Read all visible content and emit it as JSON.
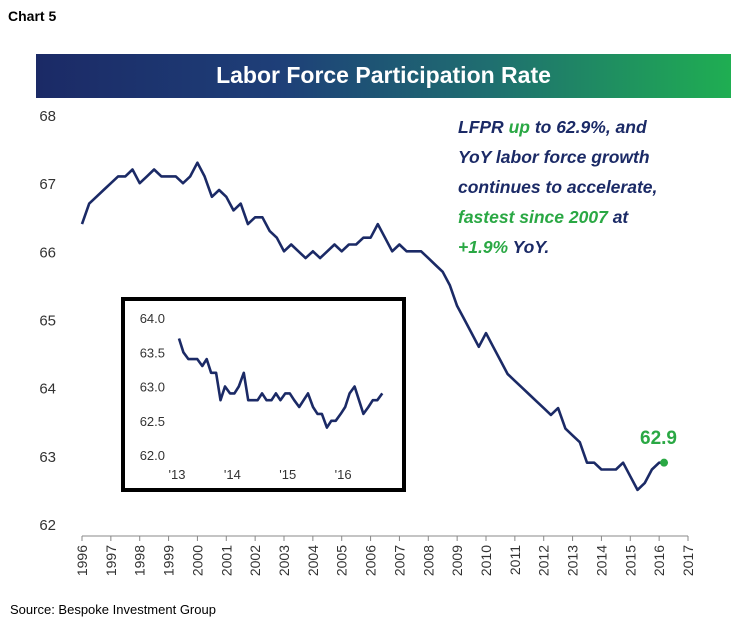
{
  "header": {
    "chart_label": "Chart 5",
    "title": "Labor Force Participation Rate"
  },
  "annotation": {
    "l1a": "LFPR ",
    "l1b": "up",
    "l1c": " to 62.9%, and",
    "l2": "YoY labor force growth",
    "l3": "continues to accelerate,",
    "l4a": "fastest since 2007",
    "l4b": " at",
    "l5a": "+1.9%",
    "l5b": " YoY."
  },
  "source": "Source: Bespoke Investment Group",
  "colors": {
    "line": "#1b2a66",
    "accent": "#2aa844"
  },
  "chart_data": [
    {
      "type": "line",
      "title": "Labor Force Participation Rate",
      "xlabel": "",
      "ylabel": "",
      "xlim": [
        1996,
        2017
      ],
      "ylim": [
        62,
        68
      ],
      "yticks": [
        "68",
        "67",
        "66",
        "65",
        "64",
        "63",
        "62"
      ],
      "xticks": [
        "1996",
        "1997",
        "1998",
        "1999",
        "2000",
        "2001",
        "2002",
        "2003",
        "2004",
        "2005",
        "2006",
        "2007",
        "2008",
        "2009",
        "2010",
        "2011",
        "2012",
        "2013",
        "2014",
        "2015",
        "2016",
        "2017"
      ],
      "last_value_label": "62.9",
      "series": [
        {
          "x": [
            1996.0,
            1996.25,
            1996.5,
            1996.75,
            1997.0,
            1997.25,
            1997.5,
            1997.75,
            1998.0,
            1998.25,
            1998.5,
            1998.75,
            1999.0,
            1999.25,
            1999.5,
            1999.75,
            2000.0,
            2000.25,
            2000.5,
            2000.75,
            2001.0,
            2001.25,
            2001.5,
            2001.75,
            2002.0,
            2002.25,
            2002.5,
            2002.75,
            2003.0,
            2003.25,
            2003.5,
            2003.75,
            2004.0,
            2004.25,
            2004.5,
            2004.75,
            2005.0,
            2005.25,
            2005.5,
            2005.75,
            2006.0,
            2006.25,
            2006.5,
            2006.75,
            2007.0,
            2007.25,
            2007.5,
            2007.75,
            2008.0,
            2008.25,
            2008.5,
            2008.75,
            2009.0,
            2009.25,
            2009.5,
            2009.75,
            2010.0,
            2010.25,
            2010.5,
            2010.75,
            2011.0,
            2011.25,
            2011.5,
            2011.75,
            2012.0,
            2012.25,
            2012.5,
            2012.75,
            2013.0,
            2013.25,
            2013.5,
            2013.75,
            2014.0,
            2014.25,
            2014.5,
            2014.75,
            2015.0,
            2015.25,
            2015.5,
            2015.75,
            2016.0,
            2016.17
          ],
          "values": [
            66.4,
            66.7,
            66.8,
            66.9,
            67.0,
            67.1,
            67.1,
            67.2,
            67.0,
            67.1,
            67.2,
            67.1,
            67.1,
            67.1,
            67.0,
            67.1,
            67.3,
            67.1,
            66.8,
            66.9,
            66.8,
            66.6,
            66.7,
            66.4,
            66.5,
            66.5,
            66.3,
            66.2,
            66.0,
            66.1,
            66.0,
            65.9,
            66.0,
            65.9,
            66.0,
            66.1,
            66.0,
            66.1,
            66.1,
            66.2,
            66.2,
            66.4,
            66.2,
            66.0,
            66.1,
            66.0,
            66.0,
            66.0,
            65.9,
            65.8,
            65.7,
            65.5,
            65.2,
            65.0,
            64.8,
            64.6,
            64.8,
            64.6,
            64.4,
            64.2,
            64.1,
            64.0,
            63.9,
            63.8,
            63.7,
            63.6,
            63.7,
            63.4,
            63.3,
            63.2,
            62.9,
            62.9,
            62.8,
            62.8,
            62.8,
            62.9,
            62.7,
            62.5,
            62.6,
            62.8,
            62.9,
            62.9
          ]
        }
      ]
    },
    {
      "type": "line",
      "title": "",
      "xlim": [
        2013,
        2016.9
      ],
      "ylim": [
        62.0,
        64.0
      ],
      "yticks": [
        "64.0",
        "63.5",
        "63.0",
        "62.5",
        "62.0"
      ],
      "xticks": [
        "'13",
        "'14",
        "'15",
        "'16"
      ],
      "series": [
        {
          "x": [
            2013.0,
            2013.08,
            2013.17,
            2013.25,
            2013.33,
            2013.42,
            2013.5,
            2013.58,
            2013.67,
            2013.75,
            2013.83,
            2013.92,
            2014.0,
            2014.08,
            2014.17,
            2014.25,
            2014.33,
            2014.42,
            2014.5,
            2014.58,
            2014.67,
            2014.75,
            2014.83,
            2014.92,
            2015.0,
            2015.08,
            2015.17,
            2015.25,
            2015.33,
            2015.42,
            2015.5,
            2015.58,
            2015.67,
            2015.75,
            2015.83,
            2015.92,
            2016.0,
            2016.08,
            2016.17,
            2016.25,
            2016.33,
            2016.42,
            2016.5,
            2016.58,
            2016.67
          ],
          "values": [
            63.7,
            63.5,
            63.4,
            63.4,
            63.4,
            63.3,
            63.4,
            63.2,
            63.2,
            62.8,
            63.0,
            62.9,
            62.9,
            63.0,
            63.2,
            62.8,
            62.8,
            62.8,
            62.9,
            62.8,
            62.8,
            62.9,
            62.8,
            62.9,
            62.9,
            62.8,
            62.7,
            62.8,
            62.9,
            62.7,
            62.6,
            62.6,
            62.4,
            62.5,
            62.5,
            62.6,
            62.7,
            62.9,
            63.0,
            62.8,
            62.6,
            62.7,
            62.8,
            62.8,
            62.9
          ]
        }
      ]
    }
  ]
}
